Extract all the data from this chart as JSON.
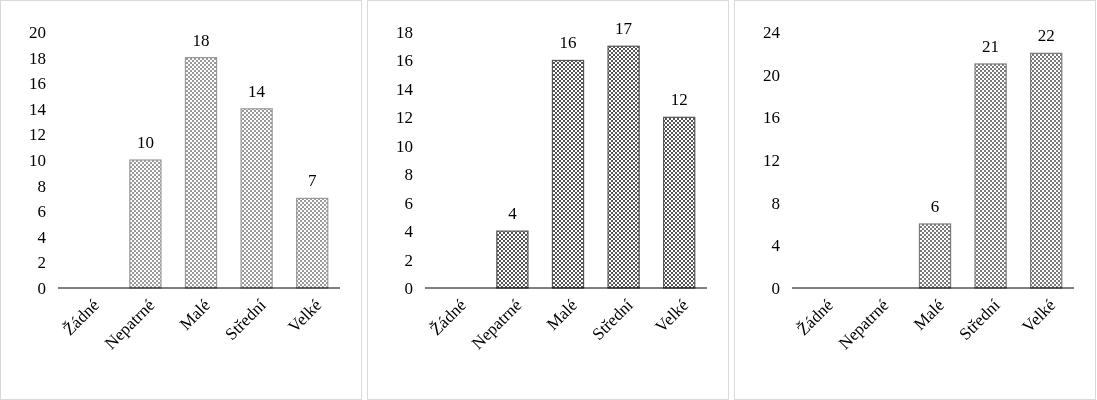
{
  "chart_data": [
    {
      "type": "bar",
      "categories": [
        "Žádné",
        "Nepatrné",
        "Malé",
        "Střední",
        "Velké"
      ],
      "values": [
        0,
        10,
        18,
        14,
        7
      ],
      "value_labels": [
        null,
        "10",
        "18",
        "14",
        "7"
      ],
      "color": "#9a9a9a",
      "ylim": [
        0,
        20
      ],
      "yticks": [
        0,
        2,
        4,
        6,
        8,
        10,
        12,
        14,
        16,
        18,
        20
      ],
      "grid": false
    },
    {
      "type": "bar",
      "categories": [
        "Žádné",
        "Nepatrné",
        "Malé",
        "Střední",
        "Velké"
      ],
      "values": [
        0,
        4,
        16,
        17,
        12
      ],
      "value_labels": [
        null,
        "4",
        "16",
        "17",
        "12"
      ],
      "color": "#555555",
      "ylim": [
        0,
        18
      ],
      "yticks": [
        0,
        2,
        4,
        6,
        8,
        10,
        12,
        14,
        16,
        18
      ],
      "grid": false
    },
    {
      "type": "bar",
      "categories": [
        "Žádné",
        "Nepatrné",
        "Malé",
        "Střední",
        "Velké"
      ],
      "values": [
        0,
        0,
        6,
        21,
        22
      ],
      "value_labels": [
        null,
        null,
        "6",
        "21",
        "22"
      ],
      "color": "#7a7a7a",
      "ylim": [
        0,
        24
      ],
      "yticks": [
        0,
        4,
        8,
        12,
        16,
        20,
        24
      ],
      "grid": false
    }
  ]
}
